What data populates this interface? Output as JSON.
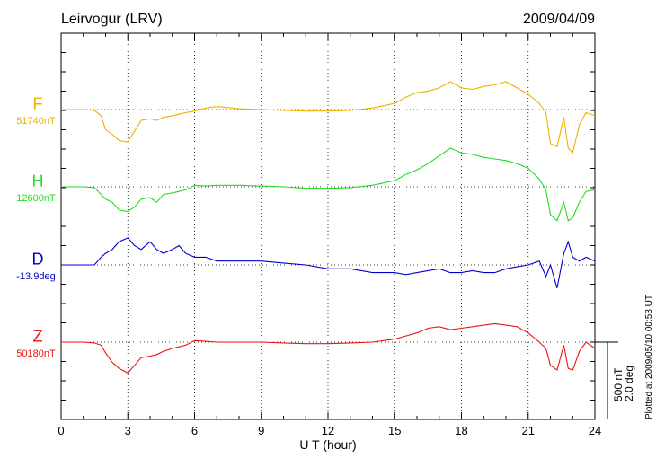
{
  "header": {
    "station": "Leirvogur (LRV)",
    "date": "2009/04/09"
  },
  "footer_note": "Plotted at 2009/05/10 00:53 UT",
  "scale_bar": {
    "line1": "500 nT",
    "line2": "2.0 deg"
  },
  "chart_data": {
    "type": "line",
    "title": "Leirvogur (LRV)",
    "date": "2009/04/09",
    "xlabel": "U T (hour)",
    "x_ticks": [
      "0",
      "3",
      "6",
      "9",
      "12",
      "15",
      "18",
      "21",
      "24"
    ],
    "xlim": [
      0,
      24
    ],
    "grid": true,
    "x": [
      0,
      0.5,
      1,
      1.5,
      1.8,
      2,
      2.3,
      2.6,
      3,
      3.3,
      3.6,
      4,
      4.3,
      4.6,
      5,
      5.3,
      5.6,
      6,
      6.5,
      7,
      8,
      9,
      10,
      11,
      12,
      13,
      14,
      15,
      15.5,
      16,
      16.5,
      17,
      17.5,
      18,
      18.5,
      19,
      19.5,
      20,
      20.5,
      21,
      21.5,
      21.8,
      22,
      22.3,
      22.6,
      22.8,
      23,
      23.3,
      23.6,
      24
    ],
    "series": [
      {
        "name": "F",
        "baseline_label": "51740nT",
        "color": "#f0b000",
        "unit": "nT",
        "values": [
          0,
          0,
          0,
          -5,
          -40,
          -130,
          -160,
          -200,
          -210,
          -140,
          -70,
          -60,
          -70,
          -50,
          -40,
          -30,
          -20,
          -10,
          10,
          20,
          5,
          0,
          -5,
          -10,
          -10,
          -5,
          10,
          40,
          80,
          110,
          120,
          140,
          180,
          140,
          130,
          150,
          160,
          180,
          140,
          100,
          40,
          -20,
          -220,
          -240,
          -50,
          -250,
          -280,
          -100,
          -20,
          -40
        ]
      },
      {
        "name": "H",
        "baseline_label": "12600nT",
        "color": "#22dd22",
        "unit": "nT",
        "values": [
          0,
          0,
          0,
          -5,
          -50,
          -80,
          -100,
          -150,
          -160,
          -130,
          -80,
          -70,
          -100,
          -50,
          -40,
          -30,
          -20,
          10,
          5,
          10,
          10,
          5,
          0,
          -10,
          -10,
          -5,
          10,
          40,
          80,
          110,
          150,
          200,
          250,
          220,
          210,
          190,
          180,
          170,
          150,
          120,
          50,
          -20,
          -180,
          -220,
          -100,
          -220,
          -200,
          -100,
          -30,
          -20
        ]
      },
      {
        "name": "D",
        "baseline_label": "-13.9deg",
        "color": "#0000cc",
        "unit": "deg",
        "values": [
          0,
          0,
          0,
          0,
          0.2,
          0.3,
          0.4,
          0.6,
          0.7,
          0.5,
          0.4,
          0.6,
          0.4,
          0.3,
          0.4,
          0.5,
          0.3,
          0.2,
          0.2,
          0.1,
          0.1,
          0.1,
          0.05,
          0,
          -0.1,
          -0.1,
          -0.2,
          -0.2,
          -0.25,
          -0.2,
          -0.15,
          -0.1,
          -0.2,
          -0.2,
          -0.15,
          -0.2,
          -0.2,
          -0.1,
          -0.05,
          0,
          0.1,
          -0.3,
          0,
          -0.6,
          0.3,
          0.6,
          0.2,
          0.1,
          0.2,
          0.1
        ]
      },
      {
        "name": "Z",
        "baseline_label": "50180nT",
        "color": "#ee1111",
        "unit": "nT",
        "values": [
          0,
          0,
          0,
          -5,
          -20,
          -70,
          -130,
          -170,
          -200,
          -150,
          -100,
          -90,
          -80,
          -60,
          -40,
          -30,
          -20,
          10,
          5,
          0,
          0,
          0,
          -5,
          -10,
          -10,
          -5,
          0,
          20,
          40,
          60,
          90,
          100,
          80,
          90,
          100,
          110,
          120,
          110,
          100,
          60,
          0,
          -40,
          -150,
          -180,
          -20,
          -170,
          -180,
          -60,
          0,
          -40
        ]
      }
    ]
  }
}
